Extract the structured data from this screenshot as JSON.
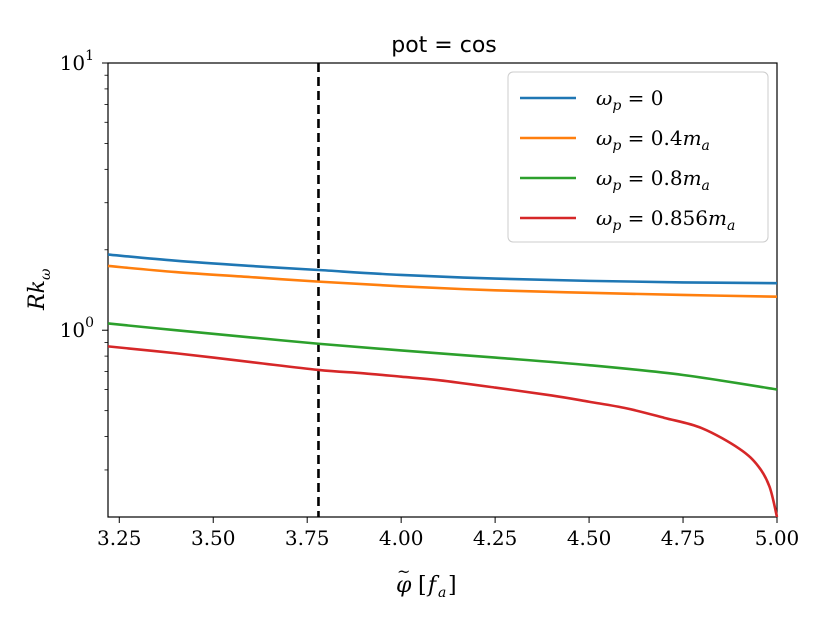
{
  "chart_data": {
    "type": "line",
    "title": "pot = cos",
    "xlabel": "φ̃ [f_a]",
    "ylabel": "Rk_ω",
    "yscale": "log",
    "xlim": [
      3.22,
      5.0
    ],
    "ylim": [
      0.2,
      10
    ],
    "xticks": [
      3.25,
      3.5,
      3.75,
      4.0,
      4.25,
      4.5,
      4.75,
      5.0
    ],
    "xtick_labels": [
      "3.25",
      "3.50",
      "3.75",
      "4.00",
      "4.25",
      "4.50",
      "4.75",
      "5.00"
    ],
    "yticks_major": [
      {
        "value": 1,
        "base": "10",
        "exp": "0"
      },
      {
        "value": 10,
        "base": "10",
        "exp": "1"
      }
    ],
    "vline": {
      "x": 3.78,
      "style": "dashed",
      "color": "#000000"
    },
    "legend": {
      "placement": "top-right"
    },
    "series": [
      {
        "name": "ω_p = 0",
        "legend_symbol": "ω",
        "legend_sub": "p",
        "legend_rest": " = 0",
        "legend_ma": false,
        "color": "#1f77b4",
        "x": [
          3.22,
          3.4,
          3.6,
          3.78,
          4.0,
          4.25,
          4.5,
          4.75,
          5.0
        ],
        "y": [
          1.92,
          1.82,
          1.74,
          1.68,
          1.61,
          1.56,
          1.53,
          1.51,
          1.5
        ]
      },
      {
        "name": "ω_p = 0.4m_a",
        "legend_symbol": "ω",
        "legend_sub": "p",
        "legend_rest": " = 0.4",
        "legend_ma": true,
        "color": "#ff7f0e",
        "x": [
          3.22,
          3.4,
          3.6,
          3.78,
          4.0,
          4.25,
          4.5,
          4.75,
          5.0
        ],
        "y": [
          1.74,
          1.65,
          1.58,
          1.52,
          1.46,
          1.41,
          1.38,
          1.355,
          1.335
        ]
      },
      {
        "name": "ω_p = 0.8m_a",
        "legend_symbol": "ω",
        "legend_sub": "p",
        "legend_rest": " = 0.8",
        "legend_ma": true,
        "color": "#2ca02c",
        "x": [
          3.22,
          3.4,
          3.6,
          3.78,
          4.0,
          4.25,
          4.5,
          4.75,
          5.0
        ],
        "y": [
          1.06,
          1.0,
          0.94,
          0.89,
          0.84,
          0.79,
          0.74,
          0.68,
          0.6
        ]
      },
      {
        "name": "ω_p = 0.856m_a",
        "legend_symbol": "ω",
        "legend_sub": "p",
        "legend_rest": " = 0.856",
        "legend_ma": true,
        "color": "#d62728",
        "x": [
          3.22,
          3.4,
          3.6,
          3.78,
          3.9,
          4.0,
          4.1,
          4.25,
          4.4,
          4.5,
          4.6,
          4.7,
          4.8,
          4.9,
          4.95,
          4.98,
          5.0
        ],
        "y": [
          0.87,
          0.82,
          0.76,
          0.71,
          0.69,
          0.67,
          0.65,
          0.61,
          0.57,
          0.54,
          0.51,
          0.47,
          0.43,
          0.36,
          0.31,
          0.26,
          0.2
        ]
      }
    ]
  }
}
